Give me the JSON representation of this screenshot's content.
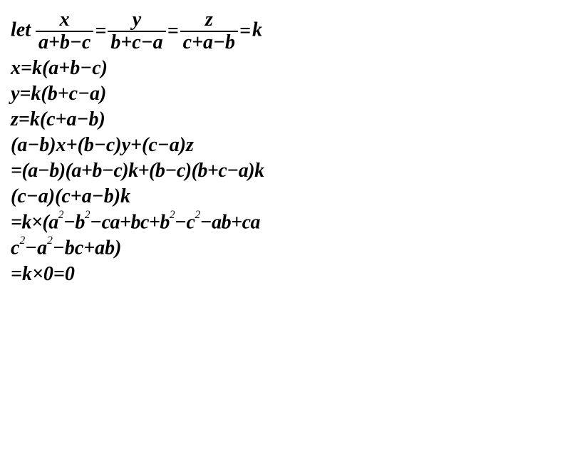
{
  "l1_let": "let ",
  "l1_f1n": "x",
  "l1_f1d": "a+b−c",
  "l1_eq1": "=",
  "l1_f2n": "y",
  "l1_f2d": "b+c−a",
  "l1_eq2": "=",
  "l1_f3n": "z",
  "l1_f3d": "c+a−b",
  "l1_eq3": "=",
  "l1_k": "k",
  "l2": "x=k(a+b−c)",
  "l3": "y=k(b+c−a)",
  "l4": "z=k(c+a−b)",
  "l5": "(a−b)x+(b−c)y+(c−a)z",
  "l6": "=(a−b)(a+b−c)k+(b−c)(b+c−a)k",
  "l7": "(c−a)(c+a−b)k",
  "l8_a": "=k×(a",
  "l8_b": "−b",
  "l8_c": "−ca+bc+b",
  "l8_d": "−c",
  "l8_e": "−ab+ca",
  "l9_a": "c",
  "l9_b": "−a",
  "l9_c": "−bc+ab)",
  "l10": "=k×0=0",
  "sq": "2"
}
